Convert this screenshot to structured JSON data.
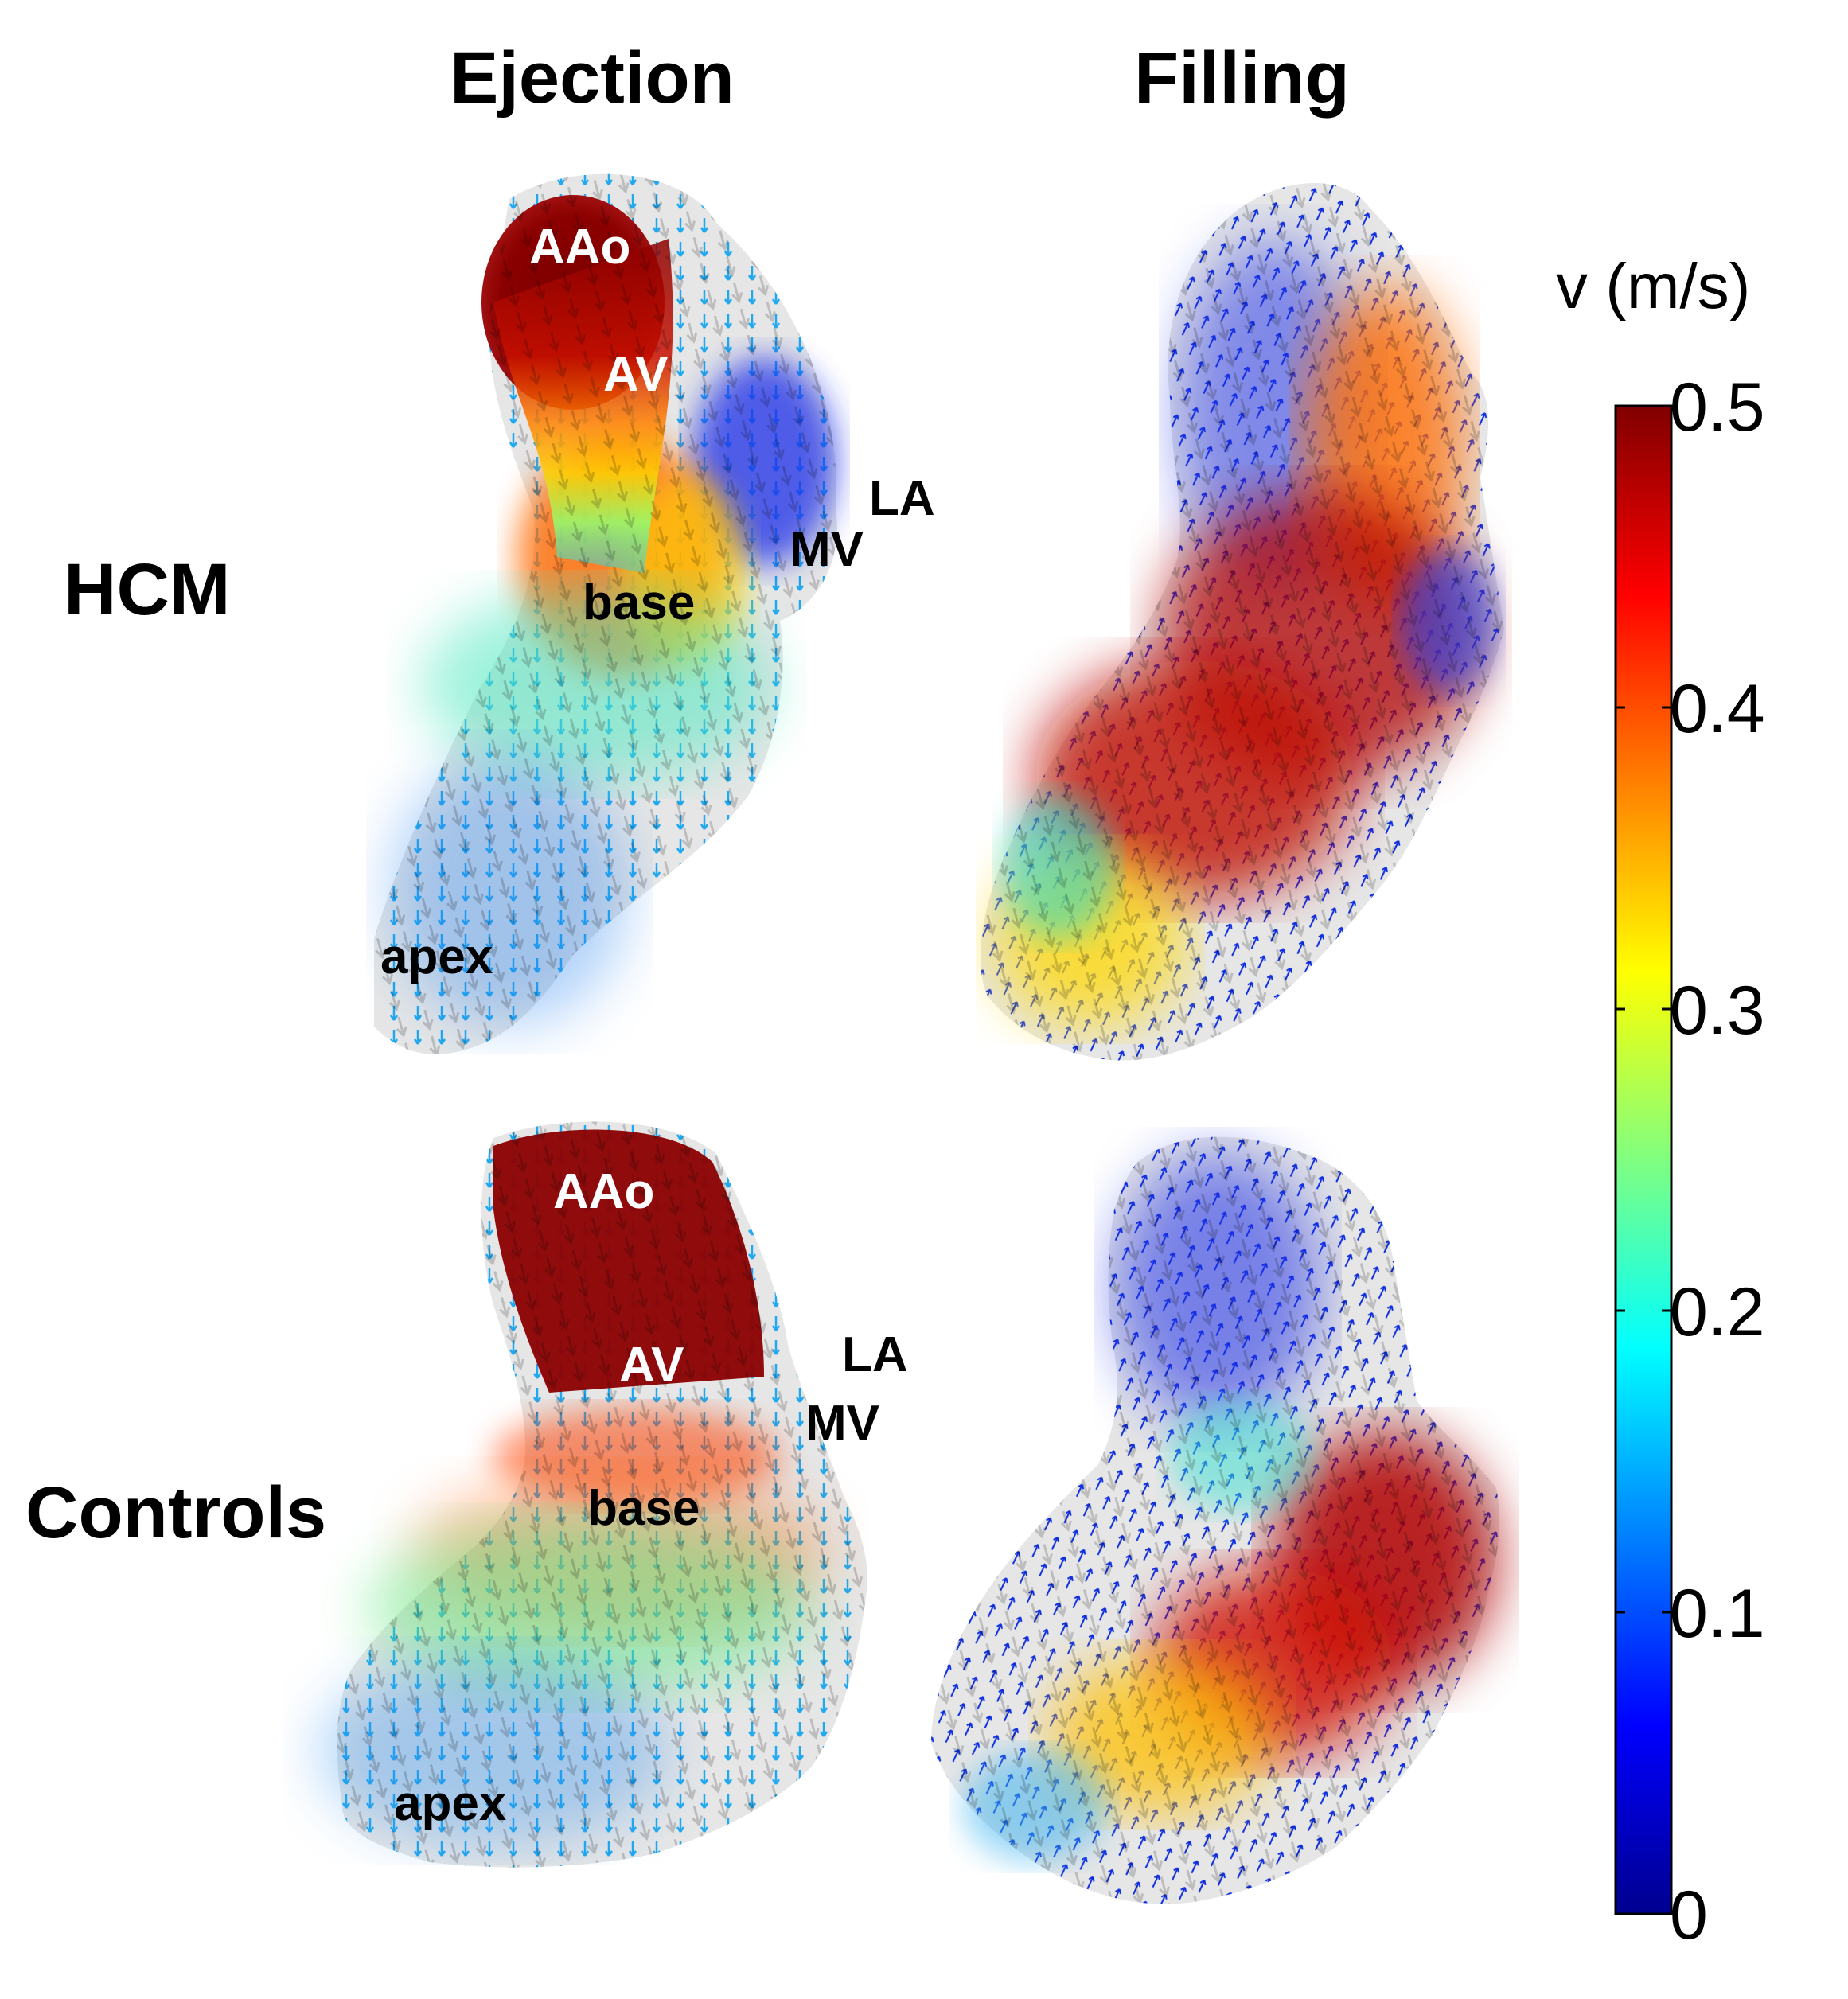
{
  "columns": {
    "ejection": "Ejection",
    "filling": "Filling"
  },
  "rows": {
    "hcm": "HCM",
    "controls": "Controls"
  },
  "panels": {
    "hcm_ejection": {
      "aao": "AAo",
      "av": "AV",
      "la": "LA",
      "mv": "MV",
      "base": "base",
      "apex": "apex"
    },
    "controls_ejection": {
      "aao": "AAo",
      "av": "AV",
      "la": "LA",
      "mv": "MV",
      "base": "base",
      "apex": "apex"
    }
  },
  "colorbar": {
    "title": "v (m/s)",
    "min": 0,
    "max": 0.5,
    "ticks": [
      "0",
      "0.1",
      "0.2",
      "0.3",
      "0.4",
      "0.5"
    ],
    "colormap": [
      "#00008f",
      "#0000ff",
      "#0080ff",
      "#00ffff",
      "#80ff80",
      "#ffff00",
      "#ff8000",
      "#ff0000",
      "#800000"
    ]
  }
}
